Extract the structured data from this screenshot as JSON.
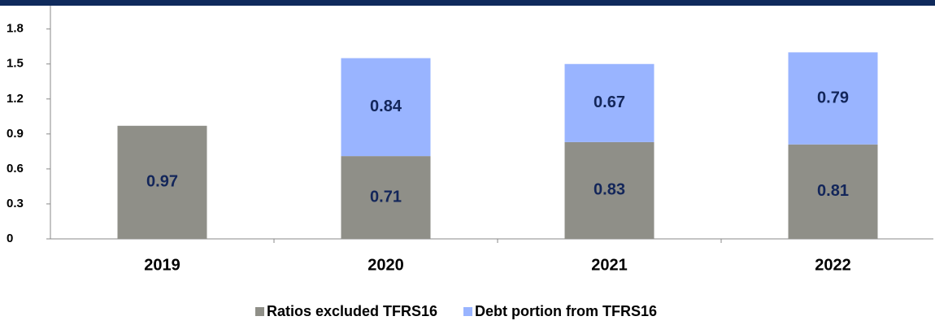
{
  "chart_data": {
    "type": "stacked_bar",
    "categories": [
      "2019",
      "2020",
      "2021",
      "2022"
    ],
    "series": [
      {
        "name": "Ratios excluded TFRS16",
        "color": "#8f8f88",
        "values": [
          0.97,
          0.71,
          0.83,
          0.81
        ]
      },
      {
        "name": "Debt portion from TFRS16",
        "color": "#99b4ff",
        "values": [
          null,
          0.84,
          0.67,
          0.79
        ]
      }
    ],
    "ylim": [
      0,
      2.0
    ],
    "yticks": [
      0,
      0.3,
      0.6,
      0.9,
      1.2,
      1.5,
      1.8
    ],
    "legend": "bottom"
  }
}
